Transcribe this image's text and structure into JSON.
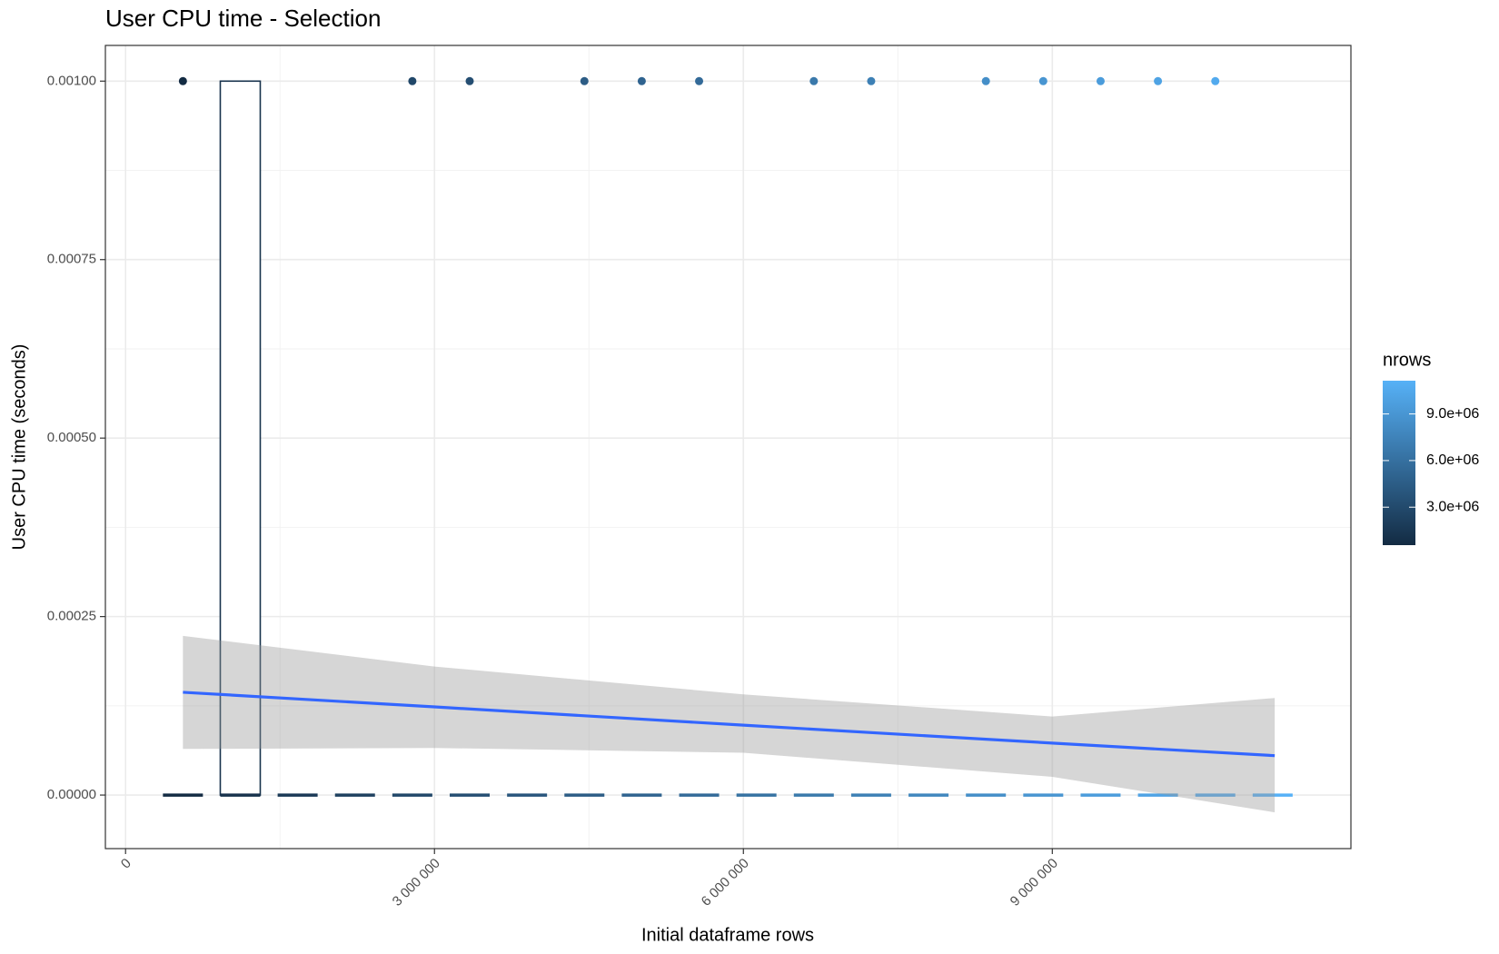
{
  "chart_data": {
    "type": "scatter",
    "title": "User CPU time - Selection",
    "x_label": "Initial dataframe rows",
    "y_label": "User CPU time (seconds)",
    "xlim": [
      -196000,
      11900000
    ],
    "ylim": [
      -7.5e-05,
      0.00105
    ],
    "xticks": [
      {
        "value": 0,
        "label": "0"
      },
      {
        "value": 3000000,
        "label": "3 000 000"
      },
      {
        "value": 6000000,
        "label": "6 000 000"
      },
      {
        "value": 9000000,
        "label": "9 000 000"
      }
    ],
    "yticks": [
      {
        "value": 0,
        "label": "0.00000"
      },
      {
        "value": 0.00025,
        "label": "0.00025"
      },
      {
        "value": 0.0005,
        "label": "0.00050"
      },
      {
        "value": 0.00075,
        "label": "0.00075"
      },
      {
        "value": 0.001,
        "label": "0.00100"
      }
    ],
    "grid": true,
    "x": [
      557000,
      2785000,
      3342000,
      4456000,
      5013000,
      5570000,
      6684000,
      7241000,
      8355000,
      8912000,
      9469000,
      10026000,
      10583000
    ],
    "y": [
      0.001,
      0.001,
      0.001,
      0.001,
      0.001,
      0.001,
      0.001,
      0.001,
      0.001,
      0.001,
      0.001,
      0.001,
      0.001
    ],
    "boxes": {
      "x": [
        557000,
        1114000,
        1671000,
        2228000,
        2785000,
        3342000,
        3899000,
        4456000,
        5013000,
        5570000,
        6127000,
        6684000,
        7241000,
        7798000,
        8355000,
        8912000,
        9469000,
        10026000,
        10583000,
        11140000
      ],
      "lower": [
        0,
        0,
        0,
        0,
        0,
        0,
        0,
        0,
        0,
        0,
        0,
        0,
        0,
        0,
        0,
        0,
        0,
        0,
        0,
        0
      ],
      "median": [
        0,
        0,
        0,
        0,
        0,
        0,
        0,
        0,
        0,
        0,
        0,
        0,
        0,
        0,
        0,
        0,
        0,
        0,
        0,
        0
      ],
      "upper": [
        0,
        0.001,
        0,
        0,
        0,
        0,
        0,
        0,
        0,
        0,
        0,
        0,
        0,
        0,
        0,
        0,
        0,
        0,
        0,
        0
      ]
    },
    "smooth": {
      "color": "#3366FF",
      "band_color": "#999999",
      "x": [
        557000,
        3000000,
        6000000,
        9000000,
        11160000
      ],
      "y": [
        0.000144,
        0.0001235,
        9.79e-05,
        7.28e-05,
        5.52e-05
      ],
      "ymin": [
        6.46e-05,
        6.6e-05,
        5.92e-05,
        2.56e-05,
        -2.42e-05
      ],
      "ymax": [
        0.000223,
        0.00018,
        0.000141,
        0.00011,
        0.000136
      ]
    },
    "legend": {
      "title": "nrows",
      "low": "#132B43",
      "high": "#56B1F7",
      "limits": [
        557000,
        11140000
      ],
      "ticks": [
        {
          "value": 3000000,
          "label": "3.0e+06"
        },
        {
          "value": 6000000,
          "label": "6.0e+06"
        },
        {
          "value": 9000000,
          "label": "9.0e+06"
        }
      ]
    }
  }
}
